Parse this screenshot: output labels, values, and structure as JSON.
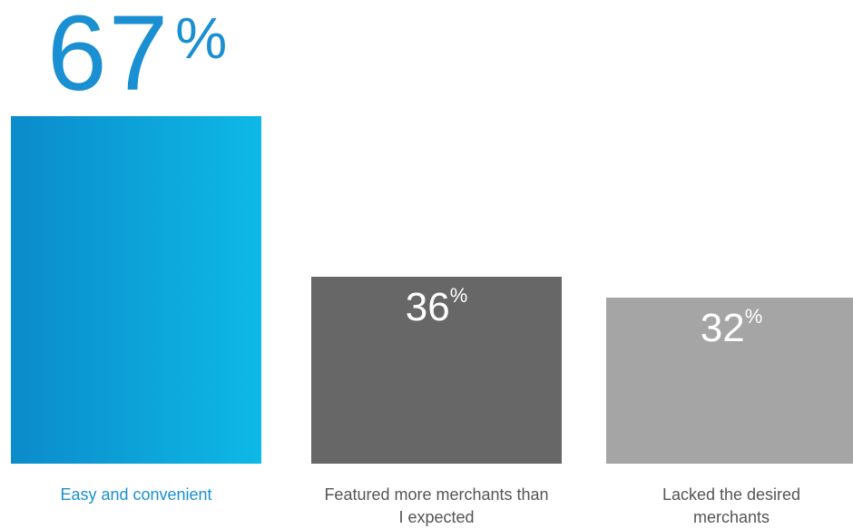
{
  "chart_data": {
    "type": "bar",
    "categories": [
      "Easy and convenient",
      "Featured more merchants than I expected",
      "Lacked the desired merchants"
    ],
    "values": [
      67,
      36,
      32
    ],
    "value_labels": [
      "67",
      "36",
      "32"
    ],
    "unit": "%",
    "ylim": [
      0,
      100
    ],
    "grid": false,
    "colors": {
      "bar_gradient": [
        "#0c8bca",
        "#0db9e6"
      ],
      "bar_dark": "#666766",
      "bar_light": "#a5a5a5",
      "accent_text": "#1a8fd1",
      "label_text": "#555555"
    }
  }
}
